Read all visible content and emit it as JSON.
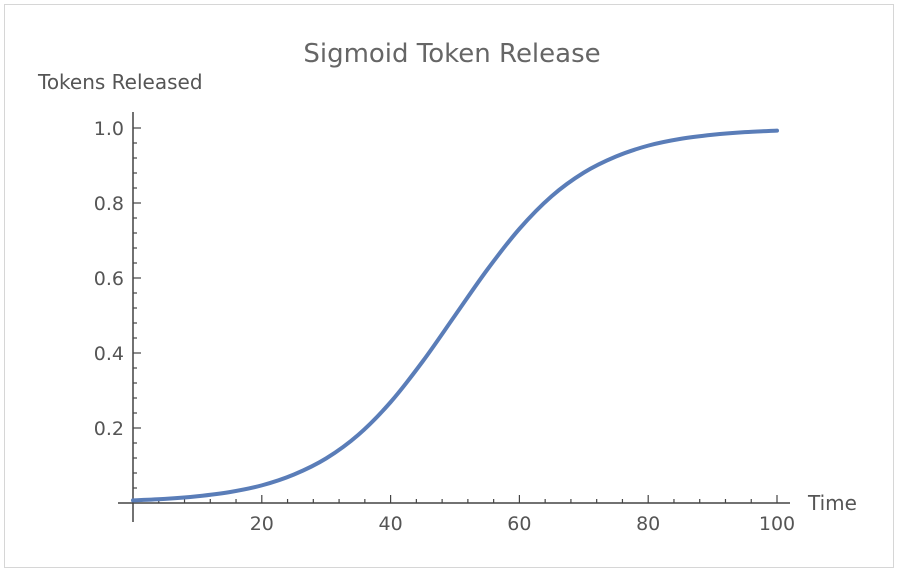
{
  "chart_data": {
    "type": "line",
    "title": "Sigmoid Token Release",
    "xlabel": "Time",
    "ylabel": "Tokens Released",
    "xlim": [
      0,
      100
    ],
    "ylim": [
      0,
      1.0
    ],
    "x_ticks": [
      20,
      40,
      60,
      80,
      100
    ],
    "y_ticks": [
      0.2,
      0.4,
      0.6,
      0.8,
      1.0
    ],
    "y_tick_labels": [
      "0.2",
      "0.4",
      "0.6",
      "0.8",
      "1.0"
    ],
    "grid": false,
    "line_color": "#5a7db8",
    "series": [
      {
        "x": [
          0,
          5,
          10,
          15,
          20,
          25,
          30,
          35,
          40,
          45,
          50,
          55,
          60,
          65,
          70,
          75,
          80,
          85,
          90,
          95,
          100
        ],
        "values": [
          0.007,
          0.011,
          0.018,
          0.029,
          0.047,
          0.076,
          0.119,
          0.182,
          0.269,
          0.378,
          0.5,
          0.622,
          0.731,
          0.818,
          0.881,
          0.924,
          0.953,
          0.971,
          0.982,
          0.989,
          0.993
        ]
      }
    ]
  }
}
